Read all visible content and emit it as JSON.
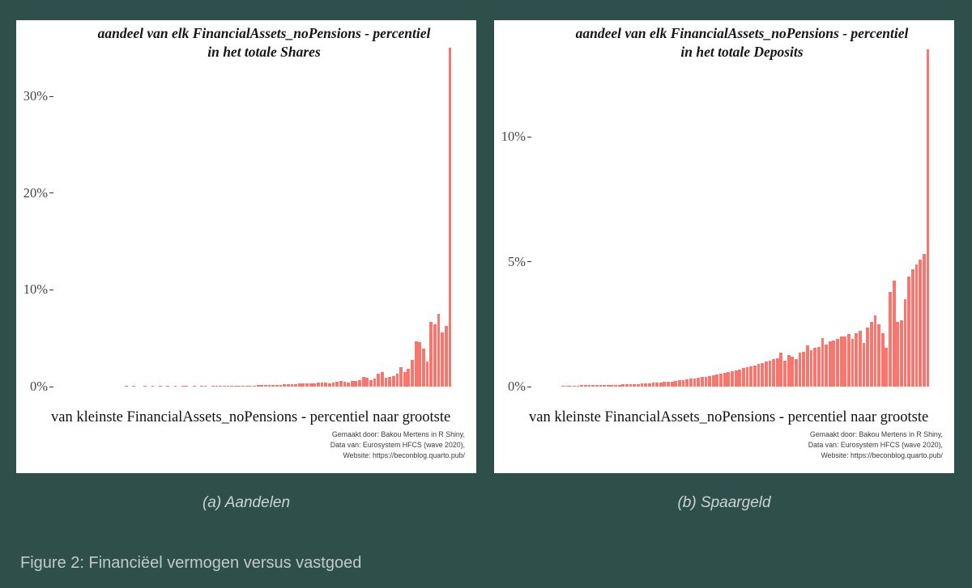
{
  "page": {
    "background_color": "#2F4F4B",
    "panel_color": "#FFFFFF",
    "caption_color": "#CBD4D2",
    "figure_caption_color": "#C1CBC9",
    "figure_caption": "Figure 2: Financiëel vermogen versus vastgoed"
  },
  "captions": {
    "a": "(a) Aandelen",
    "b": "(b) Spaargeld"
  },
  "chart_data": [
    {
      "type": "bar",
      "title": "aandeel van elk FinancialAssets_noPensions - percentiel in het totale Shares",
      "title_lines": [
        "aandeel van elk FinancialAssets_noPensions - percentiel",
        "in het totale Shares"
      ],
      "xlabel": "van kleinste FinancialAssets_noPensions - percentiel naar grootste",
      "caption": "(a) Aandelen",
      "credits": [
        "Gemaakt door: Bakou Mertens in R Shiny,",
        "Data van: Eurosystem HFCS (wave 2020),",
        "Website: https://beconblog.quarto.pub/"
      ],
      "bar_color": "#F8766D",
      "x_range": [
        1,
        100
      ],
      "x_description": "percentiel van FinancialAssets_noPensions (1 = kleinste, 100 = grootste)",
      "ylim": [
        0,
        35.1
      ],
      "yticks": [
        {
          "label": "0%",
          "value": 0
        },
        {
          "label": "10%",
          "value": 10
        },
        {
          "label": "20%",
          "value": 20
        },
        {
          "label": "30%",
          "value": 30
        }
      ],
      "grid": false,
      "legend": false,
      "values": [
        0,
        0,
        0,
        0,
        0,
        0,
        0,
        0,
        0,
        0,
        0,
        0,
        0,
        0.07,
        0,
        0.07,
        0,
        0,
        0.07,
        0,
        0.07,
        0,
        0.07,
        0,
        0.07,
        0,
        0.07,
        0,
        0.07,
        0.07,
        0,
        0.07,
        0,
        0.08,
        0.08,
        0,
        0.08,
        0.08,
        0.08,
        0.08,
        0.08,
        0.1,
        0.1,
        0.1,
        0.1,
        0.12,
        0.12,
        0.12,
        0.15,
        0.15,
        0.15,
        0.18,
        0.18,
        0.2,
        0.2,
        0.22,
        0.25,
        0.25,
        0.28,
        0.3,
        0.3,
        0.35,
        0.3,
        0.35,
        0.4,
        0.45,
        0.4,
        0.35,
        0.45,
        0.5,
        0.55,
        0.5,
        0.45,
        0.55,
        0.6,
        0.7,
        1.0,
        0.9,
        0.7,
        0.8,
        1.3,
        1.5,
        0.9,
        1.0,
        1.1,
        1.3,
        2.0,
        1.5,
        1.8,
        2.8,
        4.7,
        4.6,
        3.9,
        2.6,
        6.7,
        6.4,
        7.5,
        5.6,
        6.3,
        35.0
      ]
    },
    {
      "type": "bar",
      "title": "aandeel van elk FinancialAssets_noPensions - percentiel in het totale Deposits",
      "title_lines": [
        "aandeel van elk FinancialAssets_noPensions - percentiel",
        "in het totale Deposits"
      ],
      "xlabel": "van kleinste FinancialAssets_noPensions - percentiel naar grootste",
      "caption": "(b) Spaargeld",
      "credits": [
        "Gemaakt door: Bakou Mertens in R Shiny,",
        "Data van: Eurosystem HFCS (wave 2020),",
        "Website: https://beconblog.quarto.pub/"
      ],
      "bar_color": "#F8766D",
      "x_range": [
        1,
        100
      ],
      "x_description": "percentiel van FinancialAssets_noPensions (1 = kleinste, 100 = grootste)",
      "ylim": [
        0,
        13.6
      ],
      "yticks": [
        {
          "label": "0%",
          "value": 0
        },
        {
          "label": "5%",
          "value": 5
        },
        {
          "label": "10%",
          "value": 10
        }
      ],
      "grid": false,
      "legend": false,
      "values": [
        0,
        0,
        0.03,
        0.03,
        0.04,
        0.04,
        0.04,
        0.05,
        0.05,
        0.05,
        0.06,
        0.06,
        0.06,
        0.07,
        0.07,
        0.07,
        0.08,
        0.08,
        0.09,
        0.09,
        0.1,
        0.1,
        0.11,
        0.12,
        0.13,
        0.14,
        0.15,
        0.16,
        0.17,
        0.18,
        0.2,
        0.21,
        0.23,
        0.25,
        0.27,
        0.29,
        0.31,
        0.33,
        0.35,
        0.38,
        0.4,
        0.43,
        0.46,
        0.49,
        0.52,
        0.55,
        0.58,
        0.62,
        0.65,
        0.69,
        0.73,
        0.77,
        0.81,
        0.85,
        0.9,
        0.94,
        0.99,
        1.04,
        1.09,
        1.14,
        1.35,
        1.05,
        1.25,
        1.2,
        1.1,
        1.35,
        1.4,
        1.65,
        1.45,
        1.55,
        1.6,
        1.95,
        1.7,
        1.8,
        1.85,
        1.9,
        2.0,
        2.0,
        2.1,
        1.9,
        2.15,
        2.25,
        1.75,
        2.35,
        2.6,
        2.85,
        2.5,
        2.15,
        1.55,
        3.8,
        4.25,
        2.6,
        2.65,
        3.5,
        4.4,
        4.7,
        4.9,
        5.1,
        5.3,
        13.5
      ]
    }
  ]
}
